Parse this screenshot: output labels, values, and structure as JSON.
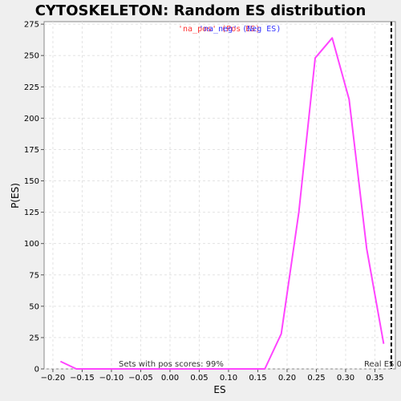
{
  "chart_data": {
    "type": "line",
    "title": "CYTOSKELETON: Random ES distribution",
    "xlabel": "ES",
    "ylabel": "P(ES)",
    "xlim": [
      -0.215,
      0.385
    ],
    "ylim": [
      0,
      277
    ],
    "xticks": [
      -0.2,
      -0.15,
      -0.1,
      -0.05,
      0.0,
      0.05,
      0.1,
      0.15,
      0.2,
      0.25,
      0.3,
      0.35
    ],
    "xtick_labels": [
      "−0.20",
      "−0.15",
      "−0.10",
      "−0.05",
      "0.00",
      "0.05",
      "0.10",
      "0.15",
      "0.20",
      "0.25",
      "0.30",
      "0.35"
    ],
    "yticks": [
      0,
      25,
      50,
      75,
      100,
      125,
      150,
      175,
      200,
      225,
      250,
      275
    ],
    "grid": true,
    "series": [
      {
        "name": "",
        "color": "#ff44ff",
        "x": [
          -0.187,
          -0.16,
          -0.13,
          -0.1,
          -0.07,
          -0.04,
          -0.01,
          0.02,
          0.05,
          0.08,
          0.11,
          0.14,
          0.162,
          0.19,
          0.22,
          0.248,
          0.277,
          0.306,
          0.336,
          0.365
        ],
        "y": [
          6,
          0,
          0,
          0,
          0,
          0,
          0,
          0,
          0,
          0,
          0,
          0,
          0,
          28,
          125,
          248,
          264,
          215,
          96,
          20
        ]
      }
    ],
    "legend": {
      "items": [
        {
          "label": "'na_pos' (Pos ES)",
          "color": "#ff3333"
        },
        {
          "label": "'na_neg' (Neg ES)",
          "color": "#3333ff"
        }
      ],
      "placement": "top-center"
    },
    "annotations": {
      "pos_scores": "Sets with pos scores: 99%",
      "real_es": "Real ES 0",
      "real_es_x": 0.378
    }
  }
}
